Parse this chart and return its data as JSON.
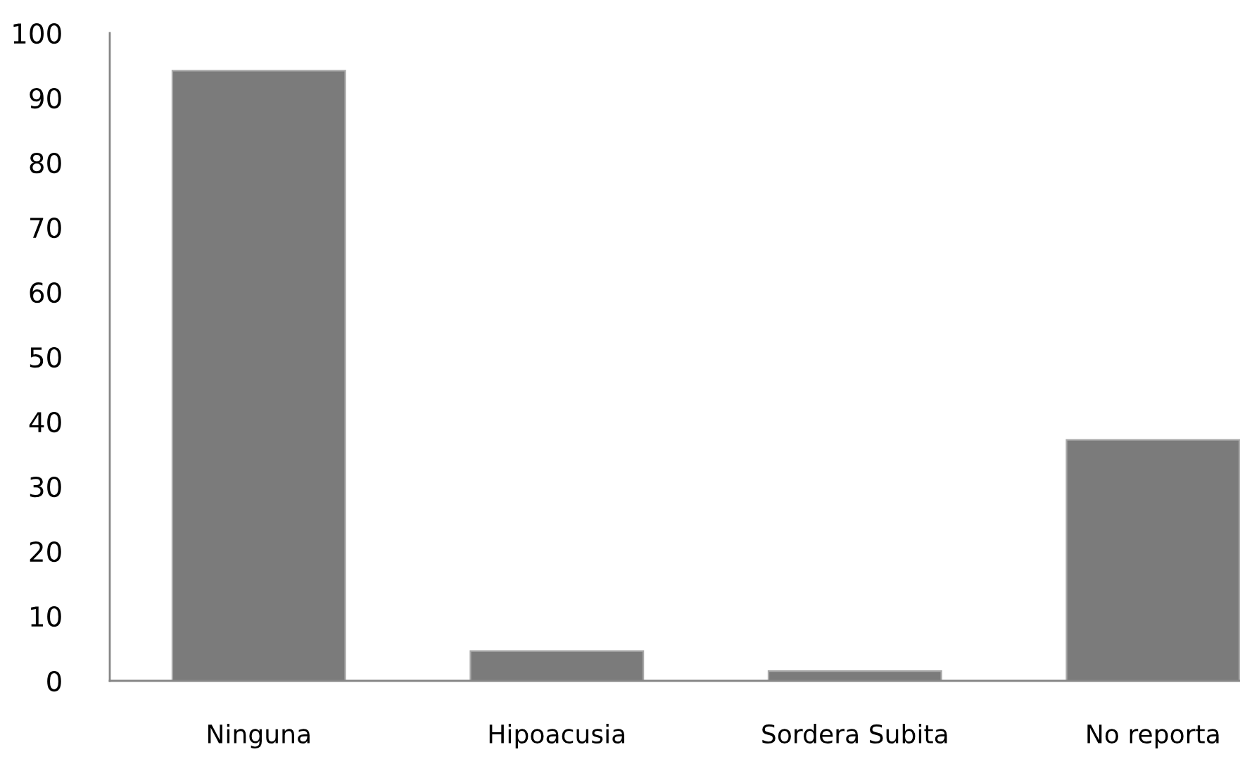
{
  "chart_data": {
    "type": "bar",
    "categories": [
      "Ninguna",
      "Hipoacusia",
      "Sordera Subita",
      "No reporta"
    ],
    "values": [
      94.2,
      4.6,
      1.5,
      37.2
    ],
    "color": "#7b7b7b",
    "ylim": [
      0,
      100
    ],
    "yticks": [
      0,
      10,
      20,
      30,
      40,
      50,
      60,
      70,
      80,
      90,
      100
    ],
    "grid": false,
    "legend": false
  }
}
